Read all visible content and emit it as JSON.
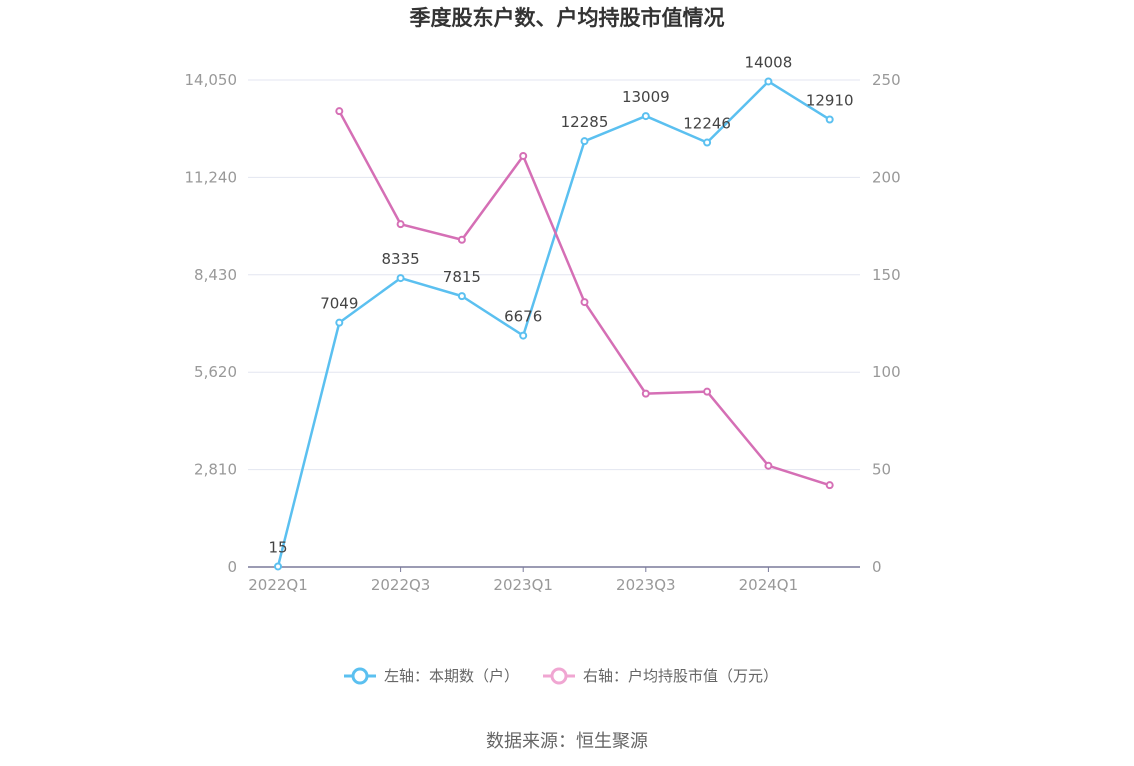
{
  "chart_data": {
    "type": "line",
    "title": "季度股东户数、户均持股市值情况",
    "categories": [
      "2022Q1",
      "2022Q2",
      "2022Q3",
      "2022Q4",
      "2023Q1",
      "2023Q2",
      "2023Q3",
      "2023Q4",
      "2024Q1",
      "2024Q2"
    ],
    "x_tick_labels": [
      "2022Q1",
      "2022Q3",
      "2023Q1",
      "2023Q3",
      "2024Q1"
    ],
    "left_axis": {
      "ticks": [
        "0",
        "2,810",
        "5,620",
        "8,430",
        "11,240",
        "14,050"
      ],
      "ylim": [
        0,
        14050
      ]
    },
    "right_axis": {
      "ticks": [
        "0",
        "50",
        "100",
        "150",
        "200",
        "250"
      ],
      "ylim": [
        0,
        250
      ]
    },
    "series": [
      {
        "name": "左轴：本期数（户）",
        "axis": "left",
        "color": "#5bc0f0",
        "values": [
          15,
          7049,
          8335,
          7815,
          6676,
          12285,
          13009,
          12246,
          14008,
          12910
        ],
        "labels": [
          "15",
          "7049",
          "8335",
          "7815",
          "6676",
          "12285",
          "13009",
          "12246",
          "14008",
          "12910"
        ]
      },
      {
        "name": "右轴：户均持股市值（万元）",
        "axis": "right",
        "color": "#d56fb5",
        "values": [
          null,
          234,
          176,
          168,
          211,
          136,
          89,
          90,
          52,
          42
        ]
      }
    ],
    "grid": true,
    "legend_position": "bottom-center",
    "source": "数据来源：恒生聚源"
  }
}
